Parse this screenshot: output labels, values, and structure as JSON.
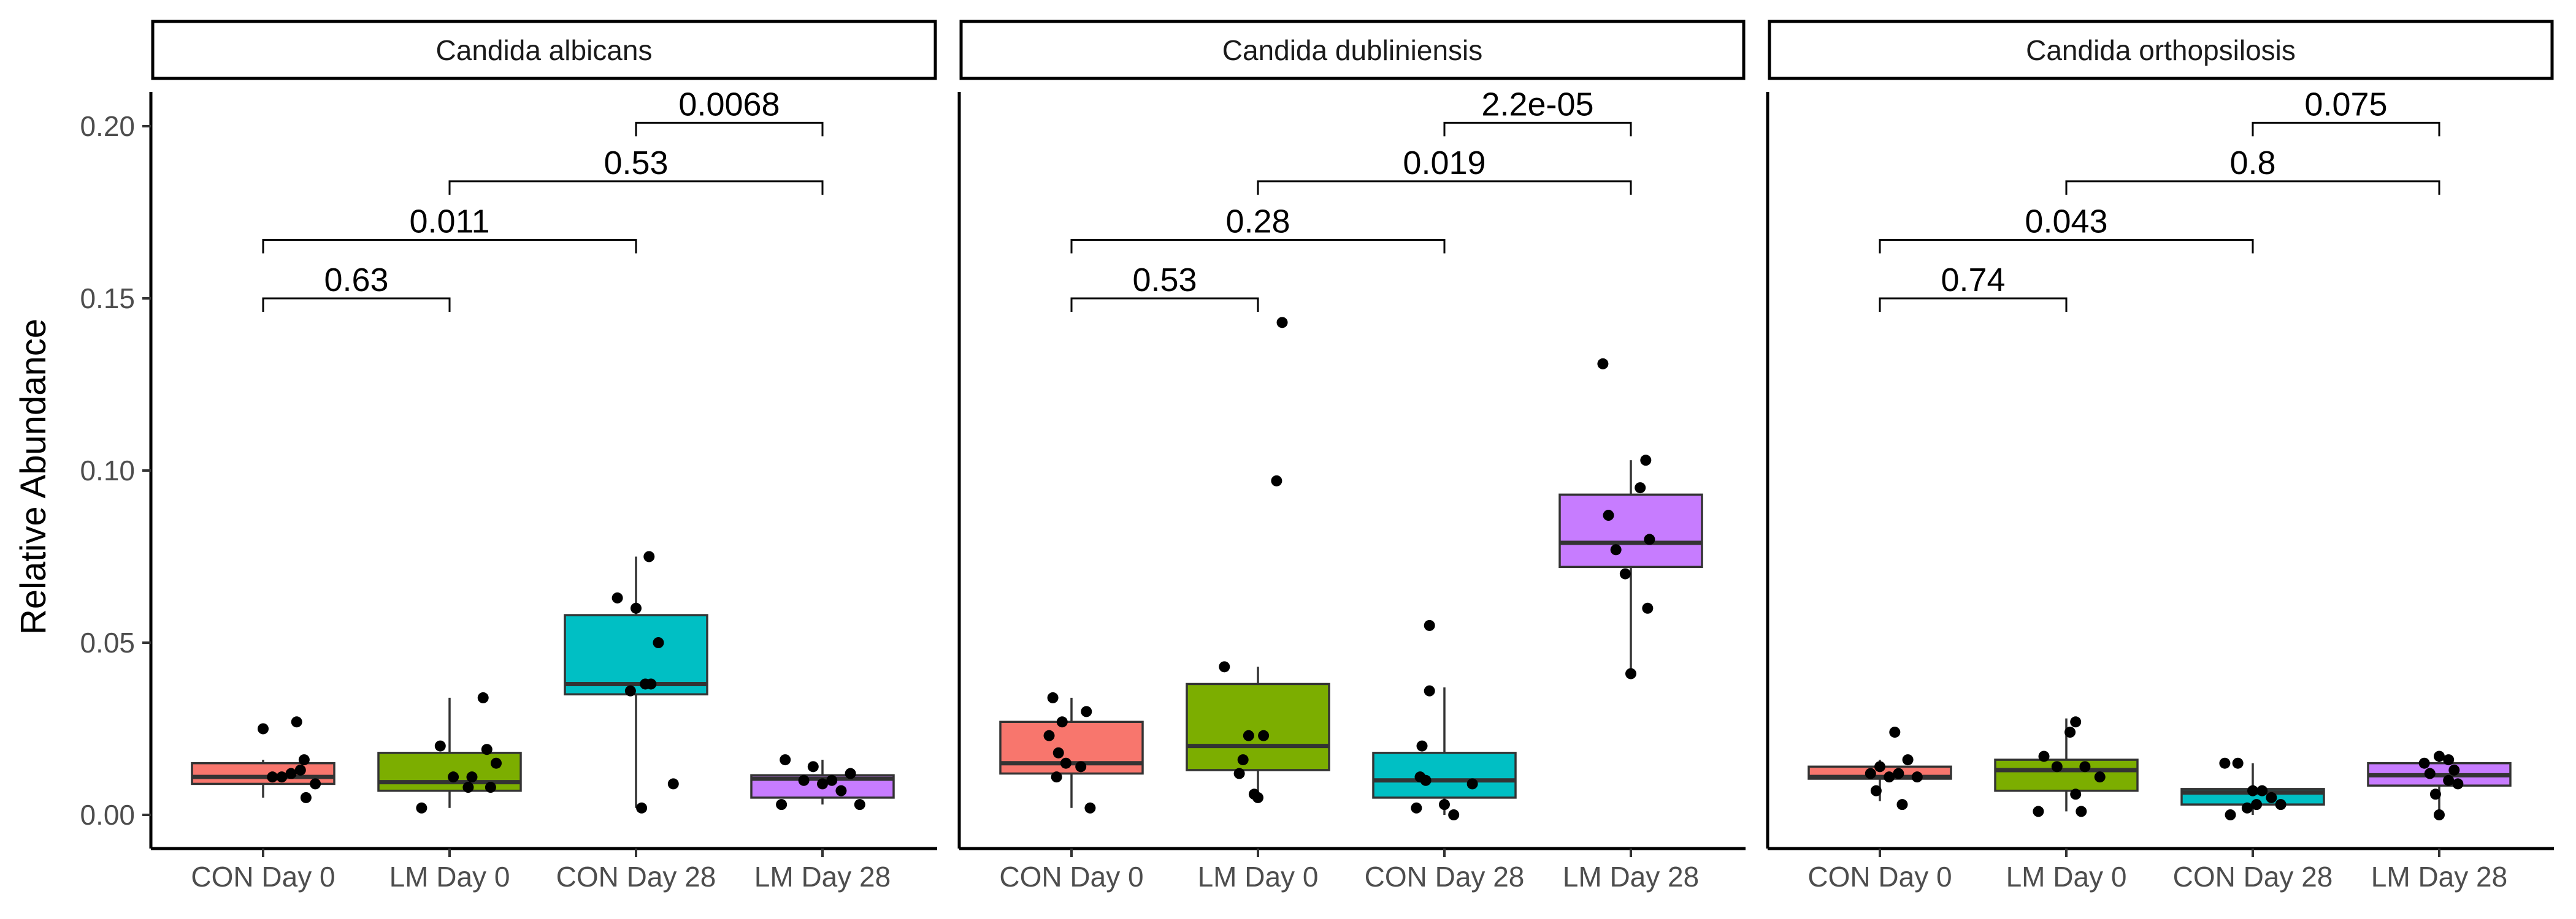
{
  "chart_data": {
    "type": "box",
    "ylabel": "Relative Abundance",
    "xlabel": "",
    "ylim": [
      -0.01,
      0.22
    ],
    "y_ticks": [
      "0.00",
      "0.05",
      "0.10",
      "0.15",
      "0.20"
    ],
    "y_tick_values": [
      0,
      0.05,
      0.1,
      0.15,
      0.2
    ],
    "categories": [
      "CON Day 0",
      "LM Day 0",
      "CON Day 28",
      "LM Day 28"
    ],
    "colors": [
      "#F8766D",
      "#7CAE00",
      "#00BFC4",
      "#C77CFF"
    ],
    "grid": false,
    "facets": [
      {
        "title": "Candida albicans",
        "boxes": [
          {
            "q1": 0.009,
            "median": 0.011,
            "q3": 0.015,
            "whisker_low": 0.005,
            "whisker_high": 0.016
          },
          {
            "q1": 0.007,
            "median": 0.0095,
            "q3": 0.018,
            "whisker_low": 0.002,
            "whisker_high": 0.034
          },
          {
            "q1": 0.035,
            "median": 0.038,
            "q3": 0.058,
            "whisker_low": 0.002,
            "whisker_high": 0.075
          },
          {
            "q1": 0.005,
            "median": 0.0105,
            "q3": 0.0115,
            "whisker_low": 0.003,
            "whisker_high": 0.016
          }
        ],
        "points": [
          [
            [
              1.18,
              0.027
            ],
            [
              1.05,
              0.011
            ],
            [
              1.2,
              0.013
            ],
            [
              1.22,
              0.016
            ],
            [
              1.28,
              0.009
            ],
            [
              1.23,
              0.005
            ],
            [
              1.0,
              0.025
            ],
            [
              1.15,
              0.012
            ],
            [
              1.1,
              0.011
            ]
          ],
          [
            [
              1.95,
              0.02
            ],
            [
              2.18,
              0.034
            ],
            [
              2.12,
              0.011
            ],
            [
              2.2,
              0.019
            ],
            [
              2.22,
              0.008
            ],
            [
              2.1,
              0.008
            ],
            [
              2.02,
              0.011
            ],
            [
              1.85,
              0.002
            ],
            [
              2.25,
              0.015
            ]
          ],
          [
            [
              3.07,
              0.075
            ],
            [
              2.9,
              0.063
            ],
            [
              3.0,
              0.06
            ],
            [
              2.97,
              0.036
            ],
            [
              3.08,
              0.038
            ],
            [
              3.12,
              0.05
            ],
            [
              3.05,
              0.038
            ],
            [
              3.2,
              0.009
            ],
            [
              3.03,
              0.002
            ]
          ],
          [
            [
              3.78,
              0.003
            ],
            [
              4.0,
              0.009
            ],
            [
              4.2,
              0.003
            ],
            [
              4.1,
              0.007
            ],
            [
              4.15,
              0.012
            ],
            [
              3.95,
              0.014
            ],
            [
              3.8,
              0.016
            ],
            [
              4.05,
              0.01
            ],
            [
              3.9,
              0.01
            ]
          ]
        ],
        "comparisons": [
          {
            "x1": 1,
            "x2": 2,
            "label": "0.63"
          },
          {
            "x1": 1,
            "x2": 3,
            "label": "0.011"
          },
          {
            "x1": 2,
            "x2": 4,
            "label": "0.53"
          },
          {
            "x1": 3,
            "x2": 4,
            "label": "0.0068"
          }
        ]
      },
      {
        "title": "Candida dubliniensis",
        "boxes": [
          {
            "q1": 0.012,
            "median": 0.015,
            "q3": 0.027,
            "whisker_low": 0.002,
            "whisker_high": 0.034
          },
          {
            "q1": 0.013,
            "median": 0.02,
            "q3": 0.038,
            "whisker_low": 0.005,
            "whisker_high": 0.043
          },
          {
            "q1": 0.005,
            "median": 0.01,
            "q3": 0.018,
            "whisker_low": 0.0,
            "whisker_high": 0.037
          },
          {
            "q1": 0.072,
            "median": 0.079,
            "q3": 0.093,
            "whisker_low": 0.041,
            "whisker_high": 0.103
          }
        ],
        "points": [
          [
            [
              0.9,
              0.034
            ],
            [
              0.88,
              0.023
            ],
            [
              0.95,
              0.027
            ],
            [
              0.92,
              0.011
            ],
            [
              0.97,
              0.015
            ],
            [
              1.05,
              0.014
            ],
            [
              1.08,
              0.03
            ],
            [
              1.1,
              0.002
            ],
            [
              0.93,
              0.018
            ]
          ],
          [
            [
              1.82,
              0.043
            ],
            [
              2.13,
              0.143
            ],
            [
              2.1,
              0.097
            ],
            [
              1.92,
              0.016
            ],
            [
              1.95,
              0.023
            ],
            [
              2.03,
              0.023
            ],
            [
              1.9,
              0.012
            ],
            [
              1.98,
              0.006
            ],
            [
              2.0,
              0.005
            ]
          ],
          [
            [
              2.92,
              0.055
            ],
            [
              2.92,
              0.036
            ],
            [
              2.88,
              0.02
            ],
            [
              2.87,
              0.011
            ],
            [
              2.9,
              0.01
            ],
            [
              3.15,
              0.009
            ],
            [
              3.0,
              0.003
            ],
            [
              2.85,
              0.002
            ],
            [
              3.05,
              0.0
            ]
          ],
          [
            [
              3.85,
              0.131
            ],
            [
              4.08,
              0.103
            ],
            [
              4.05,
              0.095
            ],
            [
              3.88,
              0.087
            ],
            [
              4.1,
              0.08
            ],
            [
              3.92,
              0.077
            ],
            [
              3.97,
              0.07
            ],
            [
              4.09,
              0.06
            ],
            [
              4.0,
              0.041
            ]
          ]
        ],
        "comparisons": [
          {
            "x1": 1,
            "x2": 2,
            "label": "0.53"
          },
          {
            "x1": 1,
            "x2": 3,
            "label": "0.28"
          },
          {
            "x1": 2,
            "x2": 4,
            "label": "0.019"
          },
          {
            "x1": 3,
            "x2": 4,
            "label": "2.2e-05"
          }
        ]
      },
      {
        "title": "Candida orthopsilosis",
        "boxes": [
          {
            "q1": 0.0105,
            "median": 0.011,
            "q3": 0.014,
            "whisker_low": 0.004,
            "whisker_high": 0.016
          },
          {
            "q1": 0.007,
            "median": 0.013,
            "q3": 0.016,
            "whisker_low": 0.001,
            "whisker_high": 0.028
          },
          {
            "q1": 0.003,
            "median": 0.0065,
            "q3": 0.0075,
            "whisker_low": 0.0,
            "whisker_high": 0.015
          },
          {
            "q1": 0.0085,
            "median": 0.0115,
            "q3": 0.015,
            "whisker_low": 0.0,
            "whisker_high": 0.018
          }
        ],
        "points": [
          [
            [
              1.08,
              0.024
            ],
            [
              0.95,
              0.012
            ],
            [
              1.0,
              0.014
            ],
            [
              1.15,
              0.016
            ],
            [
              1.1,
              0.012
            ],
            [
              1.05,
              0.011
            ],
            [
              0.98,
              0.007
            ],
            [
              1.12,
              0.003
            ],
            [
              1.2,
              0.011
            ]
          ],
          [
            [
              2.05,
              0.027
            ],
            [
              2.02,
              0.024
            ],
            [
              1.88,
              0.017
            ],
            [
              1.95,
              0.014
            ],
            [
              2.1,
              0.014
            ],
            [
              2.18,
              0.011
            ],
            [
              2.05,
              0.006
            ],
            [
              1.85,
              0.001
            ],
            [
              2.08,
              0.001
            ]
          ],
          [
            [
              2.85,
              0.015
            ],
            [
              2.92,
              0.015
            ],
            [
              3.0,
              0.007
            ],
            [
              3.05,
              0.007
            ],
            [
              3.1,
              0.005
            ],
            [
              3.02,
              0.003
            ],
            [
              3.15,
              0.003
            ],
            [
              2.88,
              0.0
            ],
            [
              2.97,
              0.002
            ]
          ],
          [
            [
              3.92,
              0.015
            ],
            [
              4.0,
              0.017
            ],
            [
              4.05,
              0.016
            ],
            [
              4.08,
              0.013
            ],
            [
              3.95,
              0.012
            ],
            [
              4.1,
              0.009
            ],
            [
              4.05,
              0.01
            ],
            [
              3.98,
              0.006
            ],
            [
              4.0,
              0.0
            ]
          ]
        ],
        "comparisons": [
          {
            "x1": 1,
            "x2": 2,
            "label": "0.74"
          },
          {
            "x1": 1,
            "x2": 3,
            "label": "0.043"
          },
          {
            "x1": 2,
            "x2": 4,
            "label": "0.8"
          },
          {
            "x1": 3,
            "x2": 4,
            "label": "0.075"
          }
        ]
      }
    ]
  }
}
